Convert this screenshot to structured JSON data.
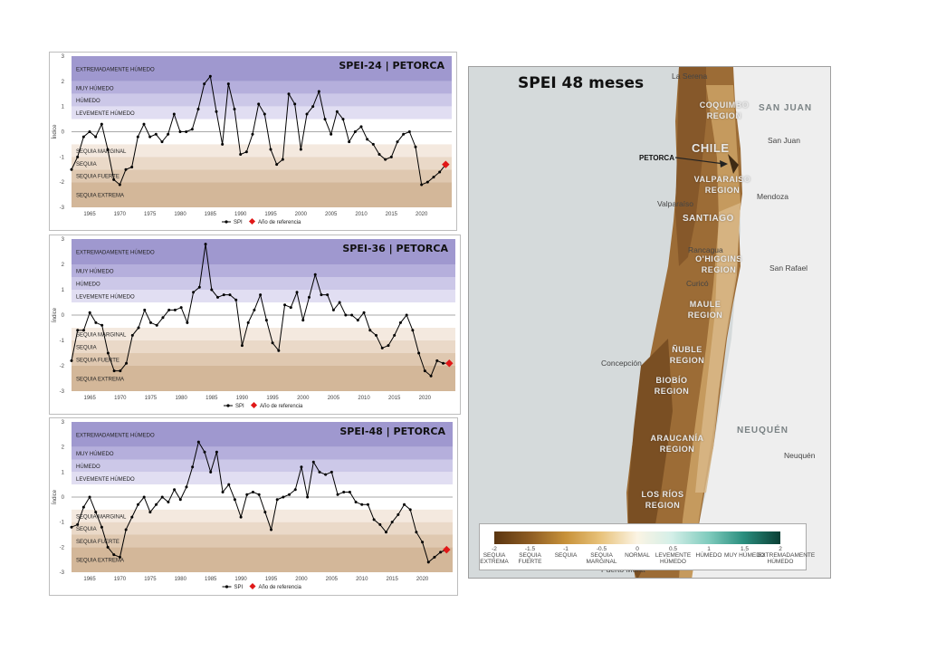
{
  "charts": [
    {
      "title": "SPEI-24 | PETORCA",
      "legend_spi": "SPI",
      "legend_ref": "Año de referencia",
      "ylabel": "Índice"
    },
    {
      "title": "SPEI-36 | PETORCA",
      "legend_spi": "SPI",
      "legend_ref": "Año de referencia",
      "ylabel": "Índice"
    },
    {
      "title": "SPEI-48 | PETORCA",
      "legend_spi": "SPI",
      "legend_ref": "Año de referencia",
      "ylabel": "Índice"
    }
  ],
  "chart_data": [
    {
      "type": "line",
      "title": "SPEI-24 | PETORCA",
      "ylabel": "Índice",
      "ylim": [
        -3,
        3
      ],
      "xticks": [
        "1965",
        "1970",
        "1975",
        "1980",
        "1985",
        "1990",
        "1995",
        "2000",
        "2005",
        "2010",
        "2015",
        "2020"
      ],
      "yticks": [
        "3",
        "2",
        "1",
        "0",
        "-1",
        "-2",
        "-3"
      ],
      "bands": [
        {
          "label": "EXTREMADAMENTE HÚMEDO",
          "from": 2,
          "to": 3,
          "color": "#9f98cf"
        },
        {
          "label": "MUY HÚMEDO",
          "from": 1.5,
          "to": 2,
          "color": "#b5afdc"
        },
        {
          "label": "HÚMEDO",
          "from": 1,
          "to": 1.5,
          "color": "#ccc8e8"
        },
        {
          "label": "LEVEMENTE HÚMEDO",
          "from": 0.5,
          "to": 1,
          "color": "#e1def2"
        },
        {
          "label": "",
          "from": -0.5,
          "to": 0.5,
          "color": "#ffffff"
        },
        {
          "label": "SEQUIA MARGINAL",
          "from": -1,
          "to": -0.5,
          "color": "#f4e9df"
        },
        {
          "label": "SEQUIA",
          "from": -1.5,
          "to": -1,
          "color": "#ead9c8"
        },
        {
          "label": "SEQUIA FUERTE",
          "from": -2,
          "to": -1.5,
          "color": "#dfc8b0"
        },
        {
          "label": "SEQUIA EXTREMA",
          "from": -3,
          "to": -2,
          "color": "#d3b799"
        }
      ],
      "series": [
        {
          "name": "SPI",
          "x": [
            1962,
            1963,
            1964,
            1965,
            1966,
            1967,
            1968,
            1969,
            1970,
            1971,
            1972,
            1973,
            1974,
            1975,
            1976,
            1977,
            1978,
            1979,
            1980,
            1981,
            1982,
            1983,
            1984,
            1985,
            1986,
            1987,
            1988,
            1989,
            1990,
            1991,
            1992,
            1993,
            1994,
            1995,
            1996,
            1997,
            1998,
            1999,
            2000,
            2001,
            2002,
            2003,
            2004,
            2005,
            2006,
            2007,
            2008,
            2009,
            2010,
            2011,
            2012,
            2013,
            2014,
            2015,
            2016,
            2017,
            2018,
            2019,
            2020,
            2021,
            2022,
            2023
          ],
          "values": [
            -1.5,
            -1.0,
            -0.2,
            0.0,
            -0.2,
            0.3,
            -0.7,
            -1.9,
            -2.1,
            -1.5,
            -1.4,
            -0.2,
            0.3,
            -0.2,
            -0.1,
            -0.4,
            -0.1,
            0.7,
            0.0,
            0.0,
            0.1,
            0.9,
            1.9,
            2.2,
            0.8,
            -0.5,
            1.9,
            0.9,
            -0.9,
            -0.8,
            -0.1,
            1.1,
            0.7,
            -0.7,
            -1.3,
            -1.1,
            1.5,
            1.1,
            -0.7,
            0.7,
            1.0,
            1.6,
            0.5,
            -0.1,
            0.8,
            0.5,
            -0.4,
            0.0,
            0.2,
            -0.3,
            -0.5,
            -0.9,
            -1.1,
            -1.0,
            -0.4,
            -0.1,
            0.0,
            -0.6,
            -2.1,
            -2.0,
            -1.8,
            -1.6
          ]
        }
      ],
      "reference": {
        "x": 2024,
        "value": -1.3
      }
    },
    {
      "type": "line",
      "title": "SPEI-36 | PETORCA",
      "ylabel": "Índice",
      "ylim": [
        -3,
        3
      ],
      "xticks": [
        "1965",
        "1970",
        "1975",
        "1980",
        "1985",
        "1990",
        "1995",
        "2000",
        "2005",
        "2010",
        "2015",
        "2020"
      ],
      "yticks": [
        "3",
        "2",
        "1",
        "0",
        "-1",
        "-2",
        "-3"
      ],
      "bands": [
        {
          "label": "EXTREMADAMENTE HÚMEDO",
          "from": 2,
          "to": 3,
          "color": "#9f98cf"
        },
        {
          "label": "MUY HÚMEDO",
          "from": 1.5,
          "to": 2,
          "color": "#b5afdc"
        },
        {
          "label": "HÚMEDO",
          "from": 1,
          "to": 1.5,
          "color": "#ccc8e8"
        },
        {
          "label": "LEVEMENTE HÚMEDO",
          "from": 0.5,
          "to": 1,
          "color": "#e1def2"
        },
        {
          "label": "",
          "from": -0.5,
          "to": 0.5,
          "color": "#ffffff"
        },
        {
          "label": "SEQUIA MARGINAL",
          "from": -1,
          "to": -0.5,
          "color": "#f4e9df"
        },
        {
          "label": "SEQUIA",
          "from": -1.5,
          "to": -1,
          "color": "#ead9c8"
        },
        {
          "label": "SEQUIA FUERTE",
          "from": -2,
          "to": -1.5,
          "color": "#dfc8b0"
        },
        {
          "label": "SEQUIA EXTREMA",
          "from": -3,
          "to": -2,
          "color": "#d3b799"
        }
      ],
      "series": [
        {
          "name": "SPI",
          "x": [
            1962,
            1963,
            1964,
            1965,
            1966,
            1967,
            1968,
            1969,
            1970,
            1971,
            1972,
            1973,
            1974,
            1975,
            1976,
            1977,
            1978,
            1979,
            1980,
            1981,
            1982,
            1983,
            1984,
            1985,
            1986,
            1987,
            1988,
            1989,
            1990,
            1991,
            1992,
            1993,
            1994,
            1995,
            1996,
            1997,
            1998,
            1999,
            2000,
            2001,
            2002,
            2003,
            2004,
            2005,
            2006,
            2007,
            2008,
            2009,
            2010,
            2011,
            2012,
            2013,
            2014,
            2015,
            2016,
            2017,
            2018,
            2019,
            2020,
            2021,
            2022,
            2023
          ],
          "values": [
            -1.8,
            -0.6,
            -0.6,
            0.1,
            -0.3,
            -0.4,
            -1.5,
            -2.2,
            -2.2,
            -1.9,
            -0.8,
            -0.5,
            0.2,
            -0.3,
            -0.4,
            -0.1,
            0.2,
            0.2,
            0.3,
            -0.3,
            0.9,
            1.1,
            2.8,
            1.0,
            0.7,
            0.8,
            0.8,
            0.6,
            -1.2,
            -0.3,
            0.2,
            0.8,
            -0.2,
            -1.1,
            -1.4,
            0.4,
            0.3,
            0.9,
            -0.2,
            0.7,
            1.6,
            0.8,
            0.8,
            0.2,
            0.5,
            0.0,
            0.0,
            -0.2,
            0.1,
            -0.6,
            -0.8,
            -1.3,
            -1.2,
            -0.8,
            -0.3,
            0.0,
            -0.6,
            -1.5,
            -2.2,
            -2.4,
            -1.8,
            -1.9
          ]
        }
      ],
      "reference": {
        "x": 2024,
        "value": -1.9
      }
    },
    {
      "type": "line",
      "title": "SPEI-48 | PETORCA",
      "ylabel": "Índice",
      "ylim": [
        -3,
        3
      ],
      "xticks": [
        "1965",
        "1970",
        "1975",
        "1980",
        "1985",
        "1990",
        "1995",
        "2000",
        "2005",
        "2010",
        "2015",
        "2020"
      ],
      "yticks": [
        "3",
        "2",
        "1",
        "0",
        "-1",
        "-2",
        "-3"
      ],
      "bands": [
        {
          "label": "EXTREMADAMENTE HÚMEDO",
          "from": 2,
          "to": 3,
          "color": "#9f98cf"
        },
        {
          "label": "MUY HÚMEDO",
          "from": 1.5,
          "to": 2,
          "color": "#b5afdc"
        },
        {
          "label": "HÚMEDO",
          "from": 1,
          "to": 1.5,
          "color": "#ccc8e8"
        },
        {
          "label": "LEVEMENTE HÚMEDO",
          "from": 0.5,
          "to": 1,
          "color": "#e1def2"
        },
        {
          "label": "",
          "from": -0.5,
          "to": 0.5,
          "color": "#ffffff"
        },
        {
          "label": "SEQUIA MARGINAL",
          "from": -1,
          "to": -0.5,
          "color": "#f4e9df"
        },
        {
          "label": "SEQUIA",
          "from": -1.5,
          "to": -1,
          "color": "#ead9c8"
        },
        {
          "label": "SEQUIA FUERTE",
          "from": -2,
          "to": -1.5,
          "color": "#dfc8b0"
        },
        {
          "label": "SEQUIA EXTREMA",
          "from": -3,
          "to": -2,
          "color": "#d3b799"
        }
      ],
      "series": [
        {
          "name": "SPI",
          "x": [
            1962,
            1963,
            1964,
            1965,
            1966,
            1967,
            1968,
            1969,
            1970,
            1971,
            1972,
            1973,
            1974,
            1975,
            1976,
            1977,
            1978,
            1979,
            1980,
            1981,
            1982,
            1983,
            1984,
            1985,
            1986,
            1987,
            1988,
            1989,
            1990,
            1991,
            1992,
            1993,
            1994,
            1995,
            1996,
            1997,
            1998,
            1999,
            2000,
            2001,
            2002,
            2003,
            2004,
            2005,
            2006,
            2007,
            2008,
            2009,
            2010,
            2011,
            2012,
            2013,
            2014,
            2015,
            2016,
            2017,
            2018,
            2019,
            2020,
            2021,
            2022,
            2023
          ],
          "values": [
            -1.2,
            -1.1,
            -0.4,
            0.0,
            -0.6,
            -1.2,
            -2.0,
            -2.3,
            -2.4,
            -1.3,
            -0.8,
            -0.3,
            0.0,
            -0.6,
            -0.3,
            0.0,
            -0.2,
            0.3,
            -0.1,
            0.4,
            1.2,
            2.2,
            1.8,
            1.0,
            1.8,
            0.2,
            0.5,
            -0.1,
            -0.8,
            0.1,
            0.2,
            0.1,
            -0.6,
            -1.3,
            -0.1,
            0.0,
            0.1,
            0.3,
            1.2,
            0.0,
            1.4,
            1.0,
            0.9,
            1.0,
            0.1,
            0.2,
            0.2,
            -0.2,
            -0.3,
            -0.3,
            -0.9,
            -1.1,
            -1.4,
            -1.0,
            -0.7,
            -0.3,
            -0.5,
            -1.4,
            -1.8,
            -2.6,
            -2.4,
            -2.2
          ]
        }
      ],
      "reference": {
        "x": 2024,
        "value": -2.1
      }
    }
  ],
  "map": {
    "title": "SPEI 48 meses",
    "petorca_label": "PETORCA",
    "country_labels": [
      "SAN JUAN",
      "NEUQUÉN"
    ],
    "chile_label": "CHILE",
    "regions": [
      "COQUIMBO REGION",
      "VALPARAISO REGION",
      "SANTIAGO",
      "O'HIGGINS REGION",
      "MAULE REGION",
      "ÑUBLE REGION",
      "BIOBÍO REGION",
      "ARAUCANÍA REGION",
      "LOS RÍOS REGION"
    ],
    "cities": [
      "La Serena",
      "San Juan",
      "Mendoza",
      "Valparaíso",
      "Rancagua",
      "San Rafael",
      "Curicó",
      "Concepción",
      "Neuquén",
      "Puerto Montt"
    ],
    "legend": {
      "ticks": [
        "-2",
        "-1.5",
        "-1",
        "-0.5",
        "0",
        "0.5",
        "1",
        "1.5",
        "2"
      ],
      "categories": [
        "SEQUIA EXTREMA",
        "SEQUIA FUERTE",
        "SEQUIA",
        "SEQUIA MARGINAL",
        "NORMAL",
        "LEVEMENTE HÚMEDO",
        "HÚMEDO",
        "MUY HÚMEDO",
        "EXTREMADAMENTE HÚMEDO"
      ]
    }
  }
}
